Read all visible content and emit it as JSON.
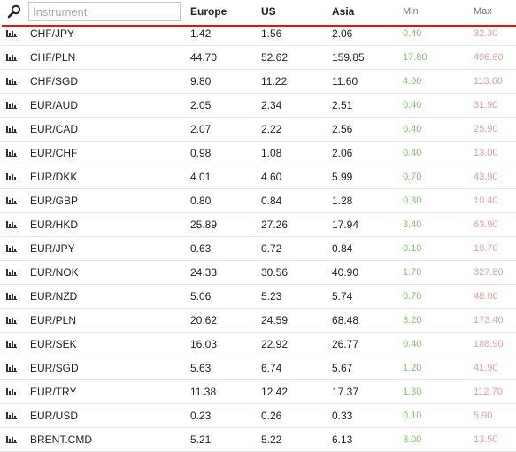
{
  "header": {
    "search_placeholder": "Instrument",
    "europe": "Europe",
    "us": "US",
    "asia": "Asia",
    "min": "Min",
    "max": "Max"
  },
  "colors": {
    "accent_line": "#cc1f1f",
    "min": "#7fbf6a",
    "max": "#e0a0a0"
  },
  "rows": [
    {
      "name": "CHF/JPY",
      "europe": "1.42",
      "us": "1.56",
      "asia": "2.06",
      "min": "0.40",
      "max": "32.30"
    },
    {
      "name": "CHF/PLN",
      "europe": "44.70",
      "us": "52.62",
      "asia": "159.85",
      "min": "17.80",
      "max": "496.60"
    },
    {
      "name": "CHF/SGD",
      "europe": "9.80",
      "us": "11.22",
      "asia": "11.60",
      "min": "4.00",
      "max": "113.60"
    },
    {
      "name": "EUR/AUD",
      "europe": "2.05",
      "us": "2.34",
      "asia": "2.51",
      "min": "0.40",
      "max": "31.90"
    },
    {
      "name": "EUR/CAD",
      "europe": "2.07",
      "us": "2.22",
      "asia": "2.56",
      "min": "0.40",
      "max": "25.90"
    },
    {
      "name": "EUR/CHF",
      "europe": "0.98",
      "us": "1.08",
      "asia": "2.06",
      "min": "0.40",
      "max": "13.00"
    },
    {
      "name": "EUR/DKK",
      "europe": "4.01",
      "us": "4.60",
      "asia": "5.99",
      "min": "0.70",
      "max": "43.90"
    },
    {
      "name": "EUR/GBP",
      "europe": "0.80",
      "us": "0.84",
      "asia": "1.28",
      "min": "0.30",
      "max": "10.40"
    },
    {
      "name": "EUR/HKD",
      "europe": "25.89",
      "us": "27.26",
      "asia": "17.94",
      "min": "3.40",
      "max": "63.90"
    },
    {
      "name": "EUR/JPY",
      "europe": "0.63",
      "us": "0.72",
      "asia": "0.84",
      "min": "0.10",
      "max": "10.70"
    },
    {
      "name": "EUR/NOK",
      "europe": "24.33",
      "us": "30.56",
      "asia": "40.90",
      "min": "1.70",
      "max": "327.60"
    },
    {
      "name": "EUR/NZD",
      "europe": "5.06",
      "us": "5.23",
      "asia": "5.74",
      "min": "0.70",
      "max": "48.00"
    },
    {
      "name": "EUR/PLN",
      "europe": "20.62",
      "us": "24.59",
      "asia": "68.48",
      "min": "3.20",
      "max": "173.40"
    },
    {
      "name": "EUR/SEK",
      "europe": "16.03",
      "us": "22.92",
      "asia": "26.77",
      "min": "0.40",
      "max": "188.90"
    },
    {
      "name": "EUR/SGD",
      "europe": "5.63",
      "us": "6.74",
      "asia": "5.67",
      "min": "1.20",
      "max": "41.90"
    },
    {
      "name": "EUR/TRY",
      "europe": "11.38",
      "us": "12.42",
      "asia": "17.37",
      "min": "1.30",
      "max": "112.70"
    },
    {
      "name": "EUR/USD",
      "europe": "0.23",
      "us": "0.26",
      "asia": "0.33",
      "min": "0.10",
      "max": "5.90"
    },
    {
      "name": "BRENT.CMD",
      "europe": "5.21",
      "us": "5.22",
      "asia": "6.13",
      "min": "3.00",
      "max": "13.50"
    }
  ]
}
